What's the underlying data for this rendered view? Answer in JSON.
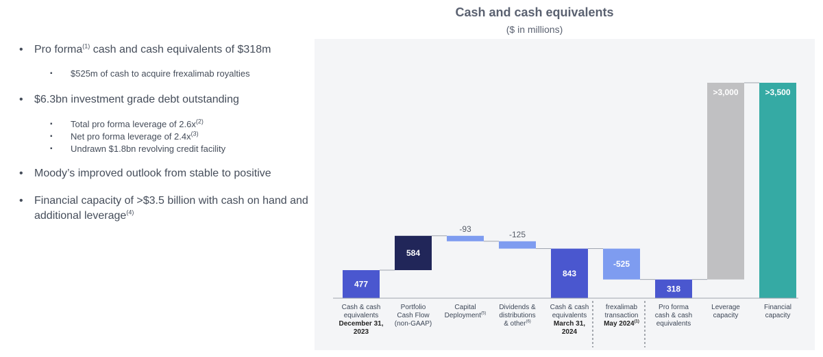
{
  "bullets": {
    "b1": {
      "pre": "Pro forma",
      "sup": "(1)",
      "post": " cash and cash equivalents of $318m"
    },
    "b1a": "$525m of cash to acquire frexalimab royalties",
    "b2": "$6.3bn investment grade debt outstanding",
    "b2a": {
      "text": "Total pro forma leverage of 2.6x",
      "sup": "(2)"
    },
    "b2b": {
      "text": "Net pro forma leverage of 2.4x",
      "sup": "(3)"
    },
    "b2c": "Undrawn $1.8bn revolving credit facility",
    "b3": "Moody’s improved outlook from stable to positive",
    "b4": {
      "text": "Financial capacity of >$3.5 billion with cash on hand and additional leverage",
      "sup": "(4)"
    }
  },
  "chart_data": {
    "type": "bar",
    "title": "Cash and cash equivalents",
    "subtitle": "($ in millions)",
    "bars": [
      {
        "label": "477",
        "base": 0,
        "top": 477,
        "color": "#4a57cf",
        "label_pos": "inside"
      },
      {
        "label": "584",
        "base": 477,
        "top": 1061,
        "color": "#212659",
        "label_pos": "inside"
      },
      {
        "label": "-93",
        "base": 968,
        "top": 1061,
        "color": "#7e9cf0",
        "label_pos": "above"
      },
      {
        "label": "-125",
        "base": 843,
        "top": 968,
        "color": "#7e9cf0",
        "label_pos": "above"
      },
      {
        "label": "843",
        "base": 0,
        "top": 843,
        "color": "#4a57cf",
        "label_pos": "inside"
      },
      {
        "label": "-525",
        "base": 318,
        "top": 843,
        "color": "#7e9cf0",
        "label_pos": "inside"
      },
      {
        "label": "318",
        "base": 0,
        "top": 318,
        "color": "#4a57cf",
        "label_pos": "inside"
      },
      {
        "label": ">3,000",
        "base": 318,
        "top": 3318,
        "color": "#c0c0c2",
        "label_pos": "inside-top",
        "broken": true
      },
      {
        "label": ">3,500",
        "base": 0,
        "top": 3818,
        "color": "#35aaa4",
        "label_pos": "inside-top",
        "broken": true
      }
    ],
    "categories": [
      {
        "lines": [
          "Cash & cash",
          "equivalents"
        ],
        "bold": [
          "December 31,",
          "2023"
        ]
      },
      {
        "lines": [
          "Portfolio",
          "Cash Flow",
          "(non-GAAP)"
        ],
        "bold": []
      },
      {
        "lines": [
          "Capital",
          "Deployment"
        ],
        "sup": "(5)",
        "bold": []
      },
      {
        "lines": [
          "Dividends &",
          "distributions",
          "& other"
        ],
        "sup": "(6)",
        "bold": []
      },
      {
        "lines": [
          "Cash & cash",
          "equivalents"
        ],
        "bold": [
          "March 31,",
          "2024"
        ]
      },
      {
        "lines": [
          "frexalimab",
          "transaction"
        ],
        "bold": [
          "May 2024"
        ],
        "boldsup": "(1)"
      },
      {
        "lines": [
          "Pro forma",
          "cash & cash",
          "equivalents"
        ],
        "bold": []
      },
      {
        "lines": [
          "Leverage",
          "capacity"
        ],
        "bold": []
      },
      {
        "lines": [
          "Financial",
          "capacity"
        ],
        "bold": []
      }
    ]
  }
}
